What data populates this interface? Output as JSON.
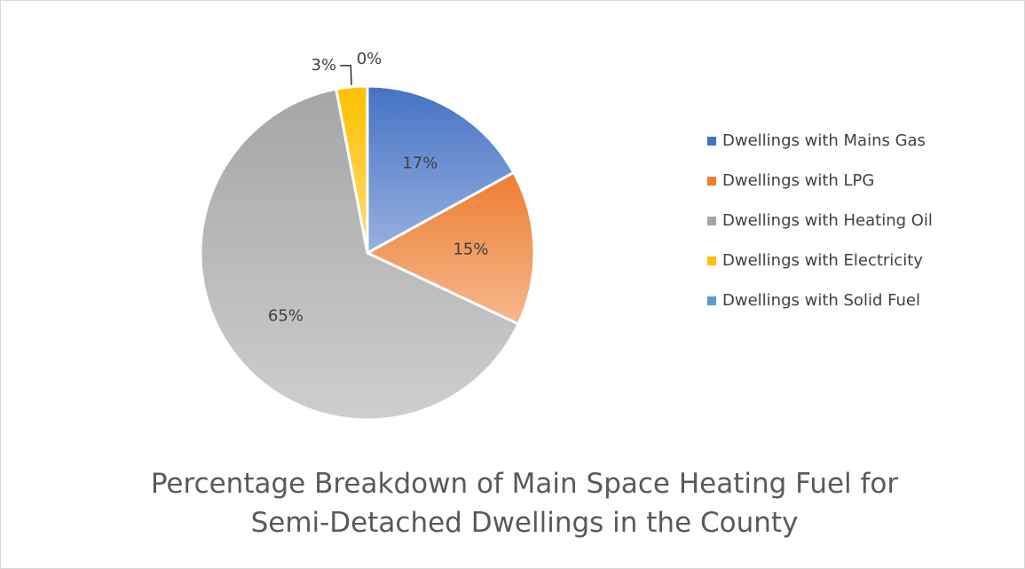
{
  "chart_data": {
    "type": "pie",
    "title": "Percentage Breakdown of Main Space Heating Fuel for Semi-Detached Dwellings in the County",
    "categories": [
      "Dwellings with Mains Gas",
      "Dwellings with LPG",
      "Dwellings with Heating Oil",
      "Dwellings with Electricity",
      "Dwellings with Solid Fuel"
    ],
    "values": [
      17,
      15,
      65,
      3,
      0
    ],
    "value_labels": [
      "17%",
      "15%",
      "65%",
      "3%",
      "0%"
    ],
    "colors": [
      "#4472c4",
      "#ed7d31",
      "#a5a5a5",
      "#ffc000",
      "#5b9bd5"
    ],
    "legend": "right"
  }
}
